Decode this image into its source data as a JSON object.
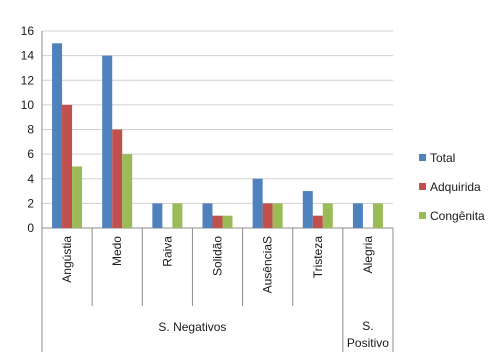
{
  "chart_data": {
    "type": "bar",
    "title": "",
    "xlabel": "",
    "ylabel": "",
    "categories": [
      "Angústia",
      "Medo",
      "Raiva",
      "Solidão",
      "AusênciaS",
      "Tristeza",
      "Alegria"
    ],
    "groups": [
      {
        "label_lines": [
          "S. Negativos"
        ],
        "categories": [
          "Angústia",
          "Medo",
          "Raiva",
          "Solidão",
          "AusênciaS",
          "Tristeza"
        ]
      },
      {
        "label_lines": [
          "S.",
          "Positivo"
        ],
        "categories": [
          "Alegria"
        ]
      }
    ],
    "series": [
      {
        "name": "Total",
        "color": "#4f81bd",
        "values": [
          15,
          14,
          2,
          2,
          4,
          3,
          2
        ]
      },
      {
        "name": "Adquirida",
        "color": "#c0504d",
        "values": [
          10,
          8,
          0,
          1,
          2,
          1,
          0
        ]
      },
      {
        "name": "Congênita",
        "color": "#9bbb59",
        "values": [
          5,
          6,
          2,
          1,
          2,
          2,
          2
        ]
      }
    ],
    "ylim": [
      0,
      16
    ],
    "yticks": [
      0,
      2,
      4,
      6,
      8,
      10,
      12,
      14,
      16
    ],
    "grid": true,
    "legend": "right"
  }
}
